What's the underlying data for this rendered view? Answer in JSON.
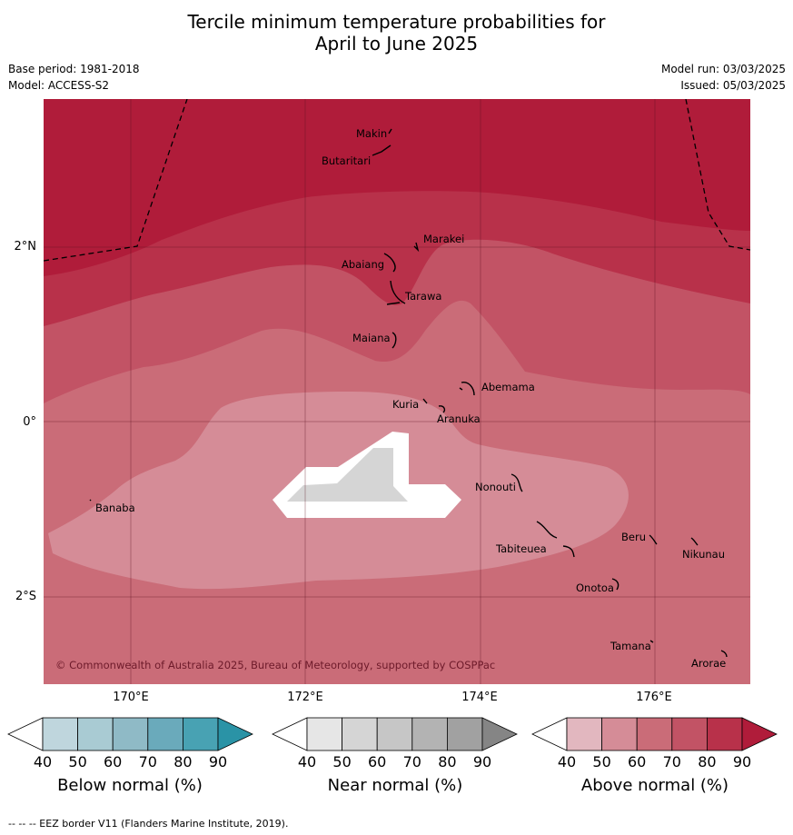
{
  "title_line1": "Tercile minimum temperature probabilities for",
  "title_line2": "April to June 2025",
  "meta": {
    "base_period": "Base period: 1981-2018",
    "model": "Model: ACCESS-S2",
    "model_run": "Model run: 03/03/2025",
    "issued": "Issued: 05/03/2025"
  },
  "axes": {
    "lat_labels": [
      "2°N",
      "0°",
      "2°S"
    ],
    "lon_labels": [
      "170°E",
      "172°E",
      "174°E",
      "176°E"
    ]
  },
  "places": [
    {
      "name": "Makin"
    },
    {
      "name": "Butaritari"
    },
    {
      "name": "Marakei"
    },
    {
      "name": "Abaiang"
    },
    {
      "name": "Tarawa"
    },
    {
      "name": "Maiana"
    },
    {
      "name": "Abemama"
    },
    {
      "name": "Kuria"
    },
    {
      "name": "Aranuka"
    },
    {
      "name": "Nonouti"
    },
    {
      "name": "Banaba"
    },
    {
      "name": "Beru"
    },
    {
      "name": "Nikunau"
    },
    {
      "name": "Tabiteuea"
    },
    {
      "name": "Onotoa"
    },
    {
      "name": "Tamana"
    },
    {
      "name": "Arorae"
    }
  ],
  "copyright": "© Commonwealth of Australia 2025, Bureau of Meteorology, supported by COSPPac",
  "colorbars": [
    {
      "label": "Below normal (%)",
      "ticks": [
        "40",
        "50",
        "60",
        "70",
        "80",
        "90"
      ],
      "colors": [
        "#bfd6dd",
        "#a9cbd3",
        "#8fbac6",
        "#6aaabb",
        "#48a2b3",
        "#2a93a6"
      ]
    },
    {
      "label": "Near normal (%)",
      "ticks": [
        "40",
        "50",
        "60",
        "70",
        "80",
        "90"
      ],
      "colors": [
        "#e6e6e6",
        "#d5d5d5",
        "#c6c6c6",
        "#b3b3b3",
        "#a1a1a1",
        "#858585"
      ]
    },
    {
      "label": "Above normal (%)",
      "ticks": [
        "40",
        "50",
        "60",
        "70",
        "80",
        "90"
      ],
      "colors": [
        "#e2b7bf",
        "#d58c97",
        "#ca6c78",
        "#c25365",
        "#b8314a",
        "#b01c3a"
      ]
    }
  ],
  "footer": "-- -- -- EEZ border V11 (Flanders Marine Institute, 2019)."
}
